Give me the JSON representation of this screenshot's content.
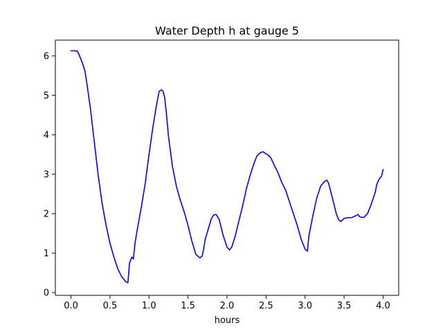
{
  "chart_data": {
    "type": "line",
    "title": "Water Depth h at gauge 5",
    "xlabel": "hours",
    "ylabel": "",
    "xlim": [
      -0.2,
      4.2
    ],
    "ylim": [
      -0.07,
      6.4
    ],
    "xticks": [
      0.0,
      0.5,
      1.0,
      1.5,
      2.0,
      2.5,
      3.0,
      3.5,
      4.0
    ],
    "xtick_labels": [
      "0.0",
      "0.5",
      "1.0",
      "1.5",
      "2.0",
      "2.5",
      "3.0",
      "3.5",
      "4.0"
    ],
    "yticks": [
      0,
      1,
      2,
      3,
      4,
      5,
      6
    ],
    "ytick_labels": [
      "0",
      "1",
      "2",
      "3",
      "4",
      "5",
      "6"
    ],
    "grid": false,
    "colors": {
      "line": "#0000ff",
      "axes": "#000000",
      "background": "#ffffff"
    },
    "series": [
      {
        "x": [
          0.0,
          0.05,
          0.08,
          0.1,
          0.12,
          0.15,
          0.18,
          0.2,
          0.25,
          0.3,
          0.35,
          0.4,
          0.45,
          0.5,
          0.55,
          0.6,
          0.65,
          0.7,
          0.73,
          0.75,
          0.78,
          0.8,
          0.82,
          0.85,
          0.9,
          0.95,
          1.0,
          1.05,
          1.1,
          1.13,
          1.16,
          1.18,
          1.2,
          1.22,
          1.25,
          1.3,
          1.35,
          1.4,
          1.45,
          1.5,
          1.55,
          1.6,
          1.65,
          1.68,
          1.7,
          1.72,
          1.75,
          1.8,
          1.83,
          1.86,
          1.9,
          1.95,
          2.0,
          2.03,
          2.06,
          2.1,
          2.15,
          2.2,
          2.25,
          2.3,
          2.35,
          2.38,
          2.4,
          2.43,
          2.46,
          2.5,
          2.53,
          2.56,
          2.6,
          2.65,
          2.7,
          2.75,
          2.8,
          2.85,
          2.9,
          2.95,
          2.98,
          3.0,
          3.03,
          3.05,
          3.1,
          3.15,
          3.2,
          3.25,
          3.28,
          3.3,
          3.35,
          3.4,
          3.43,
          3.46,
          3.5,
          3.55,
          3.6,
          3.65,
          3.68,
          3.7,
          3.75,
          3.8,
          3.85,
          3.9,
          3.92,
          3.95,
          3.98,
          4.0
        ],
        "y": [
          6.13,
          6.13,
          6.12,
          6.05,
          5.95,
          5.8,
          5.6,
          5.35,
          4.65,
          3.8,
          2.95,
          2.25,
          1.7,
          1.25,
          0.9,
          0.6,
          0.4,
          0.28,
          0.25,
          0.75,
          0.9,
          0.85,
          1.25,
          1.6,
          2.15,
          2.75,
          3.5,
          4.2,
          4.8,
          5.1,
          5.14,
          5.1,
          4.95,
          4.6,
          3.95,
          3.2,
          2.7,
          2.35,
          2.05,
          1.7,
          1.3,
          0.97,
          0.88,
          0.92,
          1.1,
          1.35,
          1.55,
          1.88,
          1.97,
          1.98,
          1.85,
          1.45,
          1.15,
          1.08,
          1.15,
          1.4,
          1.8,
          2.2,
          2.65,
          3.0,
          3.3,
          3.45,
          3.5,
          3.55,
          3.57,
          3.52,
          3.48,
          3.42,
          3.25,
          3.05,
          2.8,
          2.6,
          2.3,
          2.0,
          1.7,
          1.35,
          1.2,
          1.1,
          1.05,
          1.45,
          1.95,
          2.4,
          2.7,
          2.82,
          2.85,
          2.78,
          2.4,
          2.0,
          1.85,
          1.8,
          1.88,
          1.9,
          1.9,
          1.95,
          1.98,
          1.92,
          1.9,
          2.0,
          2.25,
          2.55,
          2.75,
          2.88,
          2.95,
          3.12
        ]
      }
    ]
  }
}
